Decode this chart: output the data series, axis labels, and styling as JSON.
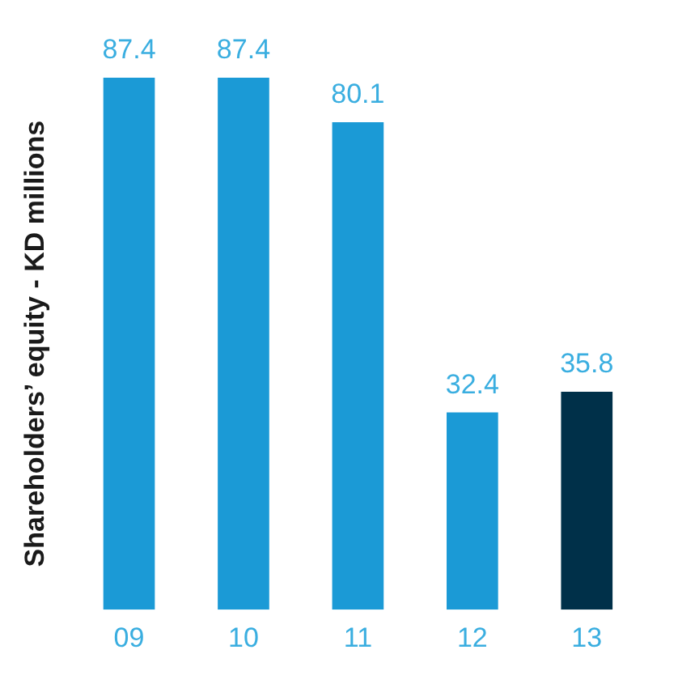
{
  "chart_data": {
    "type": "bar",
    "ylabel": "Shareholders’ equity - KD millions",
    "categories": [
      "09",
      "10",
      "11",
      "12",
      "13"
    ],
    "values": [
      87.4,
      87.4,
      80.1,
      32.4,
      35.8
    ],
    "colors": [
      "#1b9ad6",
      "#1b9ad6",
      "#1b9ad6",
      "#1b9ad6",
      "#003049"
    ],
    "data_labels": true,
    "grid": false,
    "legend": false
  }
}
